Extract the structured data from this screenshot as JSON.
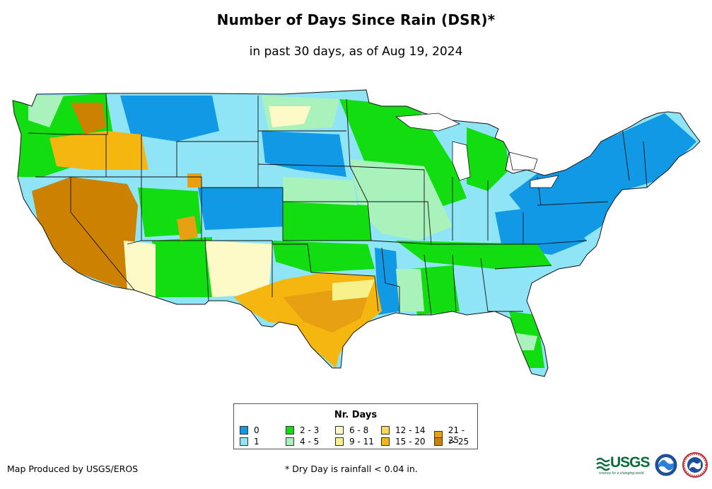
{
  "title": "Number of Days Since Rain (DSR)*",
  "subtitle": "in past 30 days, as of Aug 19, 2024",
  "legend": {
    "title": "Nr. Days",
    "items": [
      {
        "label": "0",
        "color": "#1199e6"
      },
      {
        "label": "1",
        "color": "#8fe4f5"
      },
      {
        "label": "2 - 3",
        "color": "#11dd11"
      },
      {
        "label": "4 - 5",
        "color": "#aaf2bb"
      },
      {
        "label": "6 - 8",
        "color": "#fdfac8"
      },
      {
        "label": "9 - 11",
        "color": "#f7f18c"
      },
      {
        "label": "12 - 14",
        "color": "#f5d862"
      },
      {
        "label": "15 - 20",
        "color": "#f5b70f"
      },
      {
        "label": "21 - 25",
        "color": "#e8a013"
      },
      {
        "label": "> 25",
        "color": "#cc8100"
      }
    ]
  },
  "footer": {
    "producer": "Map Produced by USGS/EROS",
    "note": "* Dry Day is rainfall < 0.04 in."
  },
  "logos": {
    "usgs": "USGS",
    "usgs_tagline": "science for a changing world",
    "noaa": "NOAA",
    "nws": "NATIONAL WEATHER SERVICE"
  }
}
